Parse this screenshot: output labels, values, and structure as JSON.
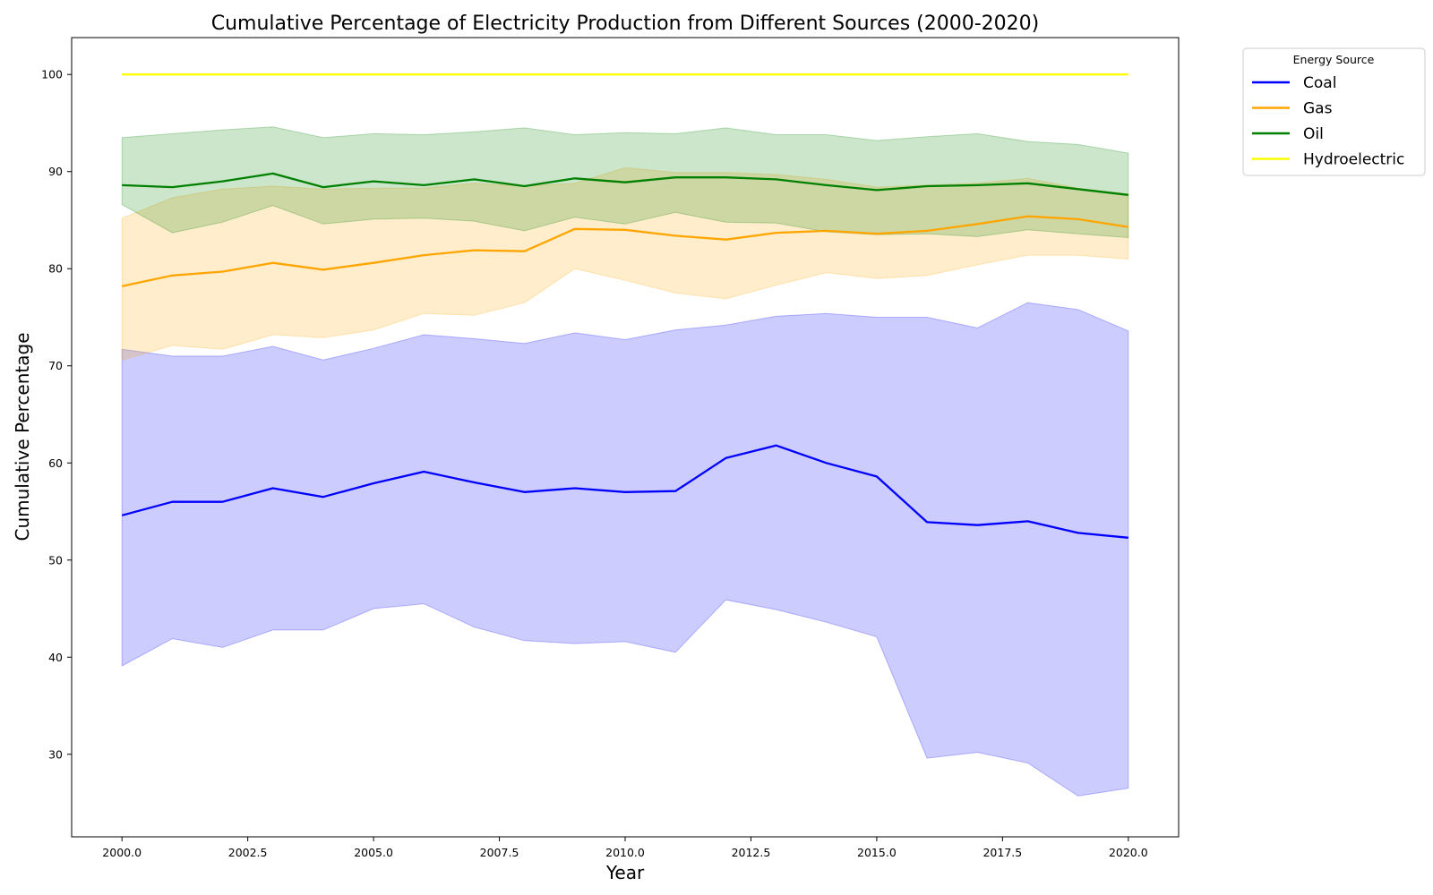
{
  "chart_data": {
    "type": "line",
    "title": "Cumulative Percentage of Electricity Production from Different Sources (2000-2020)",
    "xlabel": "Year",
    "ylabel": "Cumulative Percentage",
    "xlim": [
      1999.0,
      2021.0
    ],
    "ylim": [
      21.5,
      103.8
    ],
    "xticks": [
      2000.0,
      2002.5,
      2005.0,
      2007.5,
      2010.0,
      2012.5,
      2015.0,
      2017.5,
      2020.0
    ],
    "xtick_labels": [
      "2000.0",
      "2002.5",
      "2005.0",
      "2007.5",
      "2010.0",
      "2012.5",
      "2015.0",
      "2017.5",
      "2020.0"
    ],
    "yticks": [
      30,
      40,
      50,
      60,
      70,
      80,
      90,
      100
    ],
    "ytick_labels": [
      "30",
      "40",
      "50",
      "60",
      "70",
      "80",
      "90",
      "100"
    ],
    "grid": false,
    "legend": {
      "title": "Energy Source",
      "placement": "outside-top-right"
    },
    "x": [
      2000,
      2001,
      2002,
      2003,
      2004,
      2005,
      2006,
      2007,
      2008,
      2009,
      2010,
      2011,
      2012,
      2013,
      2014,
      2015,
      2016,
      2017,
      2018,
      2019,
      2020
    ],
    "series": [
      {
        "name": "Coal",
        "color": "#0000ff",
        "values": [
          54.6,
          56.0,
          56.0,
          57.4,
          56.5,
          57.9,
          59.1,
          58.0,
          57.0,
          57.4,
          57.0,
          57.1,
          60.5,
          61.8,
          60.0,
          58.6,
          53.9,
          53.6,
          54.0,
          52.8,
          52.3
        ],
        "band_lower": [
          39.1,
          41.9,
          41.0,
          42.8,
          42.8,
          45.0,
          45.5,
          43.1,
          41.7,
          41.4,
          41.6,
          40.5,
          45.9,
          44.9,
          43.6,
          42.1,
          29.6,
          30.2,
          29.1,
          25.7,
          26.5
        ],
        "band_upper": [
          71.7,
          71.0,
          71.0,
          72.0,
          70.6,
          71.8,
          73.2,
          72.8,
          72.3,
          73.4,
          72.7,
          73.7,
          74.2,
          75.1,
          75.4,
          75.0,
          75.0,
          73.9,
          76.5,
          75.8,
          73.6
        ]
      },
      {
        "name": "Gas",
        "color": "#ffa500",
        "values": [
          78.2,
          79.3,
          79.7,
          80.6,
          79.9,
          80.6,
          81.4,
          81.9,
          81.8,
          84.1,
          84.0,
          83.4,
          83.0,
          83.7,
          83.9,
          83.6,
          83.9,
          84.6,
          85.4,
          85.1,
          84.3
        ],
        "band_lower": [
          70.6,
          72.1,
          71.7,
          73.2,
          72.9,
          73.7,
          75.4,
          75.2,
          76.5,
          80.0,
          78.8,
          77.5,
          76.9,
          78.3,
          79.6,
          79.0,
          79.3,
          80.4,
          81.4,
          81.4,
          81.0
        ],
        "band_upper": [
          85.2,
          87.3,
          88.2,
          88.5,
          88.2,
          88.3,
          88.3,
          88.8,
          88.5,
          88.8,
          90.4,
          89.9,
          89.9,
          89.7,
          89.2,
          88.4,
          88.6,
          88.8,
          89.3,
          88.3,
          87.7
        ]
      },
      {
        "name": "Oil",
        "color": "#008000",
        "values": [
          88.6,
          88.4,
          89.0,
          89.8,
          88.4,
          89.0,
          88.6,
          89.2,
          88.5,
          89.3,
          88.9,
          89.4,
          89.4,
          89.2,
          88.6,
          88.1,
          88.5,
          88.6,
          88.8,
          88.2,
          87.6
        ],
        "band_lower": [
          86.6,
          83.7,
          84.8,
          86.5,
          84.6,
          85.1,
          85.2,
          84.9,
          83.9,
          85.3,
          84.6,
          85.8,
          84.8,
          84.7,
          83.8,
          83.5,
          83.6,
          83.3,
          84.0,
          83.6,
          83.2
        ],
        "band_upper": [
          93.5,
          93.9,
          94.3,
          94.6,
          93.5,
          93.9,
          93.8,
          94.1,
          94.5,
          93.8,
          94.0,
          93.9,
          94.5,
          93.8,
          93.8,
          93.2,
          93.6,
          93.9,
          93.1,
          92.8,
          91.9
        ]
      },
      {
        "name": "Hydroelectric",
        "color": "#ffff00",
        "values": [
          100,
          100,
          100,
          100,
          100,
          100,
          100,
          100,
          100,
          100,
          100,
          100,
          100,
          100,
          100,
          100,
          100,
          100,
          100,
          100,
          100
        ]
      }
    ]
  }
}
